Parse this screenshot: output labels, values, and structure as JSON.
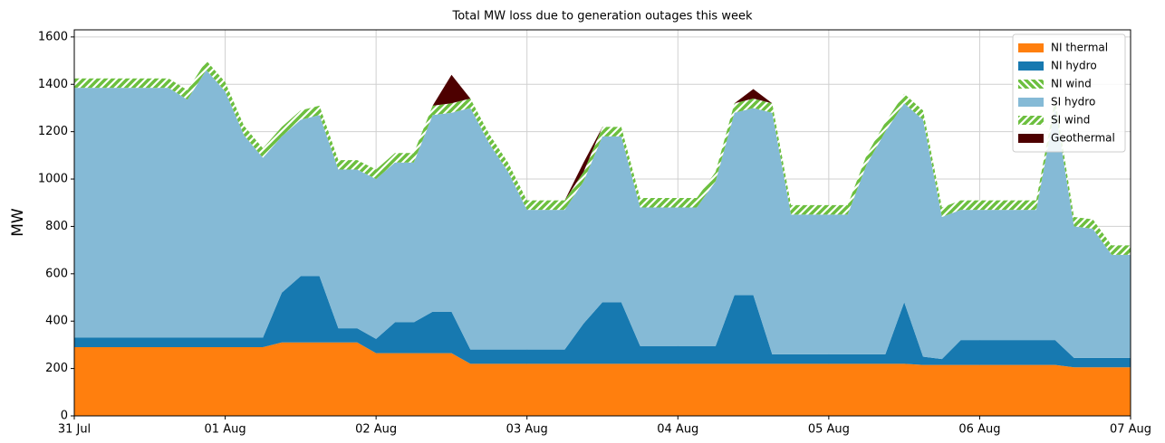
{
  "chart_data": {
    "type": "stacked_area",
    "title": "Total MW loss due to generation outages this week",
    "ylabel": "MW",
    "x": [
      0,
      0.125,
      0.25,
      0.375,
      0.5,
      0.625,
      0.75,
      0.875,
      1,
      1.125,
      1.25,
      1.375,
      1.5,
      1.625,
      1.75,
      1.875,
      2,
      2.125,
      2.25,
      2.375,
      2.5,
      2.625,
      2.75,
      2.875,
      3,
      3.125,
      3.25,
      3.375,
      3.5,
      3.625,
      3.75,
      3.875,
      4,
      4.125,
      4.25,
      4.375,
      4.5,
      4.625,
      4.75,
      4.875,
      5,
      5.125,
      5.25,
      5.375,
      5.5,
      5.625,
      5.75,
      5.875,
      6,
      6.125,
      6.25,
      6.375,
      6.5,
      6.625,
      6.75,
      6.875,
      7
    ],
    "xlim": [
      0,
      7
    ],
    "xticks": [
      {
        "value": 0,
        "label": "31 Jul"
      },
      {
        "value": 1,
        "label": "01 Aug"
      },
      {
        "value": 2,
        "label": "02 Aug"
      },
      {
        "value": 3,
        "label": "03 Aug"
      },
      {
        "value": 4,
        "label": "04 Aug"
      },
      {
        "value": 5,
        "label": "05 Aug"
      },
      {
        "value": 6,
        "label": "06 Aug"
      },
      {
        "value": 7,
        "label": "07 Aug"
      }
    ],
    "ylim": [
      0,
      1630
    ],
    "yticks": [
      0,
      200,
      400,
      600,
      800,
      1000,
      1200,
      1400,
      1600
    ],
    "grid": true,
    "legend": "upper right",
    "series": [
      {
        "name": "NI thermal",
        "color": "#ff7f0e",
        "values": [
          290,
          290,
          290,
          290,
          290,
          290,
          290,
          290,
          290,
          290,
          290,
          310,
          310,
          310,
          310,
          310,
          265,
          265,
          265,
          265,
          265,
          220,
          220,
          220,
          220,
          220,
          220,
          220,
          220,
          220,
          220,
          220,
          220,
          220,
          220,
          220,
          220,
          220,
          220,
          220,
          220,
          220,
          220,
          220,
          220,
          215,
          215,
          215,
          215,
          215,
          215,
          215,
          215,
          205,
          205,
          205,
          205
        ]
      },
      {
        "name": "NI hydro",
        "color": "#1779b0",
        "values": [
          40,
          40,
          40,
          40,
          40,
          40,
          40,
          40,
          40,
          40,
          40,
          210,
          280,
          280,
          60,
          60,
          60,
          130,
          130,
          175,
          175,
          60,
          60,
          60,
          60,
          60,
          60,
          170,
          260,
          260,
          75,
          75,
          75,
          75,
          75,
          290,
          290,
          40,
          40,
          40,
          40,
          40,
          40,
          40,
          260,
          35,
          25,
          105,
          105,
          105,
          105,
          105,
          105,
          40,
          40,
          40,
          40
        ]
      },
      {
        "name": "NI wind",
        "color": "#6cbf3f",
        "hatch": "\\",
        "values": [
          0,
          0,
          0,
          0,
          0,
          0,
          0,
          0,
          0,
          0,
          0,
          0,
          0,
          0,
          0,
          0,
          0,
          0,
          0,
          0,
          0,
          0,
          0,
          0,
          0,
          0,
          0,
          0,
          0,
          0,
          0,
          0,
          0,
          0,
          0,
          0,
          0,
          0,
          0,
          0,
          0,
          0,
          0,
          0,
          0,
          0,
          0,
          0,
          0,
          0,
          0,
          0,
          0,
          0,
          0,
          0,
          0
        ]
      },
      {
        "name": "SI hydro",
        "color": "#85bad6",
        "values": [
          1055,
          1055,
          1055,
          1055,
          1055,
          1055,
          1005,
          1130,
          1040,
          855,
          760,
          660,
          660,
          680,
          670,
          670,
          675,
          675,
          675,
          830,
          840,
          1020,
          870,
          750,
          590,
          590,
          590,
          600,
          700,
          700,
          585,
          585,
          585,
          585,
          695,
          770,
          790,
          1020,
          590,
          590,
          590,
          590,
          800,
          940,
          840,
          1000,
          600,
          550,
          550,
          550,
          550,
          550,
          980,
          555,
          545,
          435,
          435
        ]
      },
      {
        "name": "SI wind",
        "color": "#6cbf3f",
        "hatch": "/",
        "values": [
          40,
          40,
          40,
          40,
          40,
          40,
          40,
          40,
          40,
          40,
          40,
          40,
          40,
          40,
          40,
          40,
          40,
          40,
          40,
          40,
          40,
          40,
          40,
          40,
          40,
          40,
          40,
          40,
          40,
          40,
          40,
          40,
          40,
          40,
          40,
          40,
          40,
          40,
          40,
          40,
          40,
          40,
          40,
          40,
          40,
          40,
          40,
          40,
          40,
          40,
          40,
          40,
          40,
          40,
          40,
          40,
          40
        ]
      },
      {
        "name": "Geothermal",
        "color": "#4d0000",
        "values": [
          0,
          0,
          0,
          0,
          0,
          0,
          0,
          0,
          0,
          0,
          0,
          0,
          0,
          0,
          0,
          0,
          0,
          0,
          0,
          0,
          120,
          0,
          0,
          0,
          0,
          0,
          0,
          40,
          0,
          0,
          0,
          0,
          0,
          0,
          0,
          0,
          40,
          0,
          0,
          0,
          0,
          0,
          0,
          0,
          0,
          0,
          0,
          0,
          0,
          0,
          0,
          0,
          0,
          0,
          0,
          0,
          0
        ]
      }
    ]
  }
}
